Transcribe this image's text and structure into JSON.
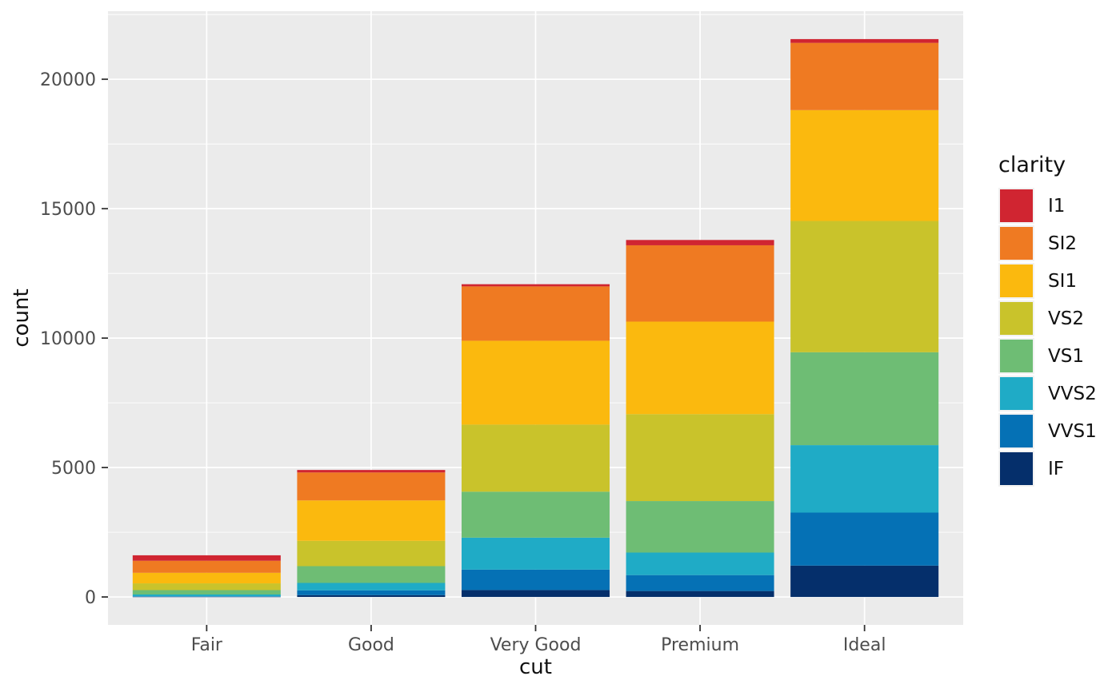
{
  "chart_data": {
    "type": "bar",
    "stacked": true,
    "title": "",
    "xlabel": "cut",
    "ylabel": "count",
    "categories": [
      "Fair",
      "Good",
      "Very Good",
      "Premium",
      "Ideal"
    ],
    "series": [
      {
        "name": "I1",
        "color": "#D02531",
        "values": [
          210,
          96,
          84,
          205,
          146
        ]
      },
      {
        "name": "SI2",
        "color": "#EF7A22",
        "values": [
          466,
          1081,
          2100,
          2949,
          2598
        ]
      },
      {
        "name": "SI1",
        "color": "#FBB90E",
        "values": [
          408,
          1560,
          3240,
          3575,
          4282
        ]
      },
      {
        "name": "VS2",
        "color": "#C9C32B",
        "values": [
          261,
          978,
          2591,
          3357,
          5071
        ]
      },
      {
        "name": "VS1",
        "color": "#6EBD74",
        "values": [
          170,
          648,
          1775,
          1989,
          3589
        ]
      },
      {
        "name": "VVS2",
        "color": "#1FABC6",
        "values": [
          69,
          286,
          1235,
          870,
          2606
        ]
      },
      {
        "name": "VVS1",
        "color": "#0571B5",
        "values": [
          17,
          186,
          789,
          616,
          2047
        ]
      },
      {
        "name": "IF",
        "color": "#052F6B",
        "values": [
          9,
          71,
          268,
          230,
          1212
        ]
      }
    ],
    "stack_order_note": "series listed top-to-bottom of legend; stacking bottom-to-top is the reverse (IF at bottom, I1 on top)",
    "totals": [
      1610,
      4906,
      12082,
      13791,
      21551
    ],
    "y_ticks": [
      0,
      5000,
      10000,
      15000,
      20000
    ],
    "y_tick_labels": [
      "0",
      "5000",
      "10000",
      "15000",
      "20000"
    ],
    "y_minor_ticks": [
      2500,
      7500,
      12500,
      17500,
      22500
    ],
    "ylim": [
      0,
      21551
    ],
    "y_domain_expanded": [
      -1078,
      22629
    ],
    "legend": {
      "title": "clarity",
      "position": "right"
    },
    "grid": {
      "major": "on",
      "minor": "on"
    }
  },
  "style": {
    "panel_bg": "#EBEBEB",
    "grid_major_color": "#FFFFFF",
    "grid_minor_color": "#FFFFFF",
    "tick_label_color": "#4D4D4D",
    "axis_title_color": "#111111",
    "tick_mark_color": "#333333",
    "legend_key_bg": "#F2F2F2",
    "background": "#FFFFFF"
  }
}
